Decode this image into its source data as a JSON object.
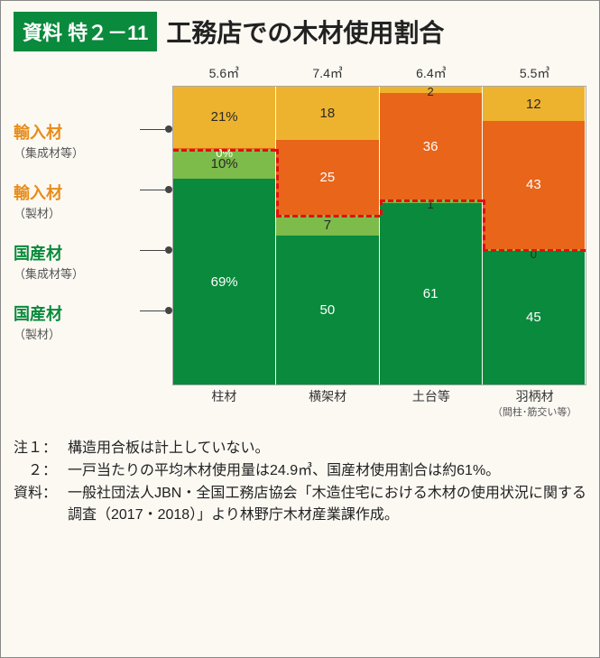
{
  "header": {
    "badge": "資料 特２－11",
    "title": "工務店での木材使用割合"
  },
  "legend": [
    {
      "main": "輸入材",
      "sub": "（集成材等）",
      "color": "#e88c1a"
    },
    {
      "main": "輸入材",
      "sub": "（製材）",
      "color": "#e88c1a"
    },
    {
      "main": "国産材",
      "sub": "（集成材等）",
      "color": "#0a8a3c"
    },
    {
      "main": "国産材",
      "sub": "（製材）",
      "color": "#0a8a3c"
    }
  ],
  "chart": {
    "type": "stacked-bar",
    "columns": [
      {
        "top": "5.6㎥",
        "x": "柱材",
        "xsub": "",
        "segs": [
          {
            "h": 69,
            "label": "69%",
            "color": "#0a8a3c"
          },
          {
            "h": 10,
            "label": "10%",
            "color": "#7dbb4a",
            "dark": true
          },
          {
            "h": 0.5,
            "label": "0%",
            "color": "#e8651a",
            "tiny": "top"
          },
          {
            "h": 20.5,
            "label": "21%",
            "color": "#eeb32e",
            "dark": true
          }
        ]
      },
      {
        "top": "7.4㎥",
        "x": "横架材",
        "xsub": "",
        "segs": [
          {
            "h": 50,
            "label": "50",
            "color": "#0a8a3c"
          },
          {
            "h": 7,
            "label": "7",
            "color": "#7dbb4a",
            "dark": true
          },
          {
            "h": 25,
            "label": "25",
            "color": "#e8651a"
          },
          {
            "h": 18,
            "label": "18",
            "color": "#eeb32e",
            "dark": true
          }
        ]
      },
      {
        "top": "6.4㎥",
        "x": "土台等",
        "xsub": "",
        "segs": [
          {
            "h": 61,
            "label": "61",
            "color": "#0a8a3c"
          },
          {
            "h": 1,
            "label": "1",
            "color": "#7dbb4a",
            "tiny": "top",
            "dark": true
          },
          {
            "h": 36,
            "label": "36",
            "color": "#e8651a"
          },
          {
            "h": 2,
            "label": "2",
            "color": "#eeb32e",
            "tiny": "top",
            "dark": true
          }
        ]
      },
      {
        "top": "5.5㎥",
        "x": "羽柄材",
        "xsub": "（間柱･筋交い等）",
        "segs": [
          {
            "h": 45,
            "label": "45",
            "color": "#0a8a3c"
          },
          {
            "h": 0.5,
            "label": "0",
            "color": "#7dbb4a",
            "tiny": "top",
            "dark": true
          },
          {
            "h": 43,
            "label": "43",
            "color": "#e8651a"
          },
          {
            "h": 11.5,
            "label": "12",
            "color": "#eeb32e",
            "dark": true
          }
        ]
      }
    ],
    "dash_color": "#e01010",
    "domestic_tops_pct": [
      79,
      57,
      62,
      45.5
    ]
  },
  "notes": {
    "n1_label": "注１：",
    "n1_text": "構造用合板は計上していない。",
    "n2_label": "　２：",
    "n2_text": "一戸当たりの平均木材使用量は24.9㎥、国産材使用割合は約61%。",
    "src_label": "資料：",
    "src_text": "一般社団法人JBN・全国工務店協会「木造住宅における木材の使用状況に関する調査（2017・2018）」より林野庁木材産業課作成。"
  }
}
